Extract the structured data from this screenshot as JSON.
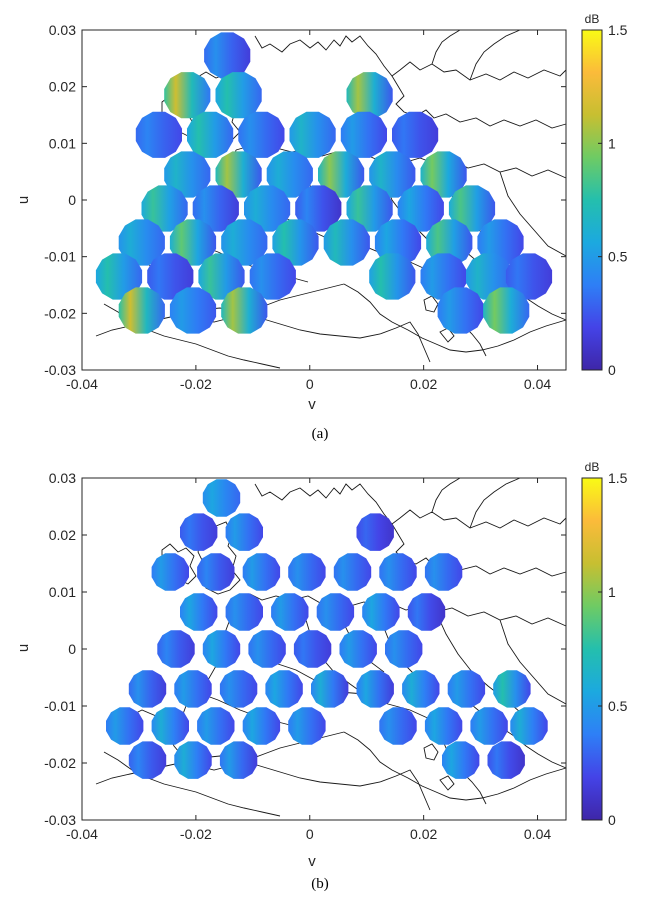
{
  "figure": {
    "panels": [
      {
        "caption": "(a)"
      },
      {
        "caption": "(b)"
      }
    ]
  },
  "colors": {
    "colormap": [
      "#3e26a8",
      "#4443e7",
      "#2e7ff6",
      "#1ca9df",
      "#24bfad",
      "#6ecb64",
      "#c7bf31",
      "#fbbb3a",
      "#f9fb15"
    ],
    "axis": "#262626",
    "coastline": "#1a1a1a"
  },
  "chart_data": [
    {
      "type": "heatmap",
      "title": "",
      "xlabel": "v",
      "ylabel": "u",
      "xlim": [
        -0.04,
        0.045
      ],
      "ylim": [
        -0.03,
        0.03
      ],
      "xticks": [
        "-0.04",
        "-0.02",
        "0",
        "0.02",
        "0.04"
      ],
      "xtick_values": [
        -0.04,
        -0.02,
        0,
        0.02,
        0.04
      ],
      "yticks": [
        "0.03",
        "0.02",
        "0.01",
        "0",
        "-0.01",
        "-0.02",
        "-0.03"
      ],
      "ytick_values": [
        0.03,
        0.02,
        0.01,
        0,
        -0.01,
        -0.02,
        -0.03
      ],
      "colorbar": {
        "label": "dB",
        "range": [
          0,
          1.5
        ],
        "ticks": [
          "1.5",
          "1",
          "0.5",
          "0"
        ],
        "tick_values": [
          1.5,
          1,
          0.5,
          0
        ]
      },
      "beam_radius": 0.0042,
      "beams": [
        {
          "v": -0.0145,
          "u": 0.0255,
          "min_db": 0.15,
          "max_db": 0.45
        },
        {
          "v": -0.0215,
          "u": 0.0185,
          "min_db": 0.35,
          "max_db": 1.15
        },
        {
          "v": -0.0125,
          "u": 0.0185,
          "min_db": 0.3,
          "max_db": 0.75
        },
        {
          "v": 0.0105,
          "u": 0.0185,
          "min_db": 0.25,
          "max_db": 1.05
        },
        {
          "v": -0.0265,
          "u": 0.0115,
          "min_db": 0.2,
          "max_db": 0.4
        },
        {
          "v": -0.0175,
          "u": 0.0115,
          "min_db": 0.3,
          "max_db": 0.75
        },
        {
          "v": -0.0085,
          "u": 0.0115,
          "min_db": 0.2,
          "max_db": 0.45
        },
        {
          "v": 0.0005,
          "u": 0.0115,
          "min_db": 0.3,
          "max_db": 0.65
        },
        {
          "v": 0.0095,
          "u": 0.0115,
          "min_db": 0.2,
          "max_db": 0.5
        },
        {
          "v": 0.0185,
          "u": 0.0115,
          "min_db": 0.15,
          "max_db": 0.35
        },
        {
          "v": -0.0215,
          "u": 0.0045,
          "min_db": 0.3,
          "max_db": 0.65
        },
        {
          "v": -0.0125,
          "u": 0.0045,
          "min_db": 0.25,
          "max_db": 1.05
        },
        {
          "v": -0.0035,
          "u": 0.0045,
          "min_db": 0.3,
          "max_db": 0.6
        },
        {
          "v": 0.0055,
          "u": 0.0045,
          "min_db": 0.25,
          "max_db": 1.0
        },
        {
          "v": 0.0145,
          "u": 0.0045,
          "min_db": 0.25,
          "max_db": 0.65
        },
        {
          "v": 0.0235,
          "u": 0.0045,
          "min_db": 0.25,
          "max_db": 0.95
        },
        {
          "v": -0.0255,
          "u": -0.0015,
          "min_db": 0.3,
          "max_db": 0.8
        },
        {
          "v": -0.0165,
          "u": -0.0015,
          "min_db": 0.15,
          "max_db": 0.45
        },
        {
          "v": -0.0075,
          "u": -0.0015,
          "min_db": 0.3,
          "max_db": 0.6
        },
        {
          "v": 0.0015,
          "u": -0.0015,
          "min_db": 0.1,
          "max_db": 0.4
        },
        {
          "v": 0.0105,
          "u": -0.0015,
          "min_db": 0.25,
          "max_db": 0.8
        },
        {
          "v": 0.0195,
          "u": -0.0015,
          "min_db": 0.2,
          "max_db": 0.55
        },
        {
          "v": 0.0285,
          "u": -0.0015,
          "min_db": 0.25,
          "max_db": 0.85
        },
        {
          "v": -0.0295,
          "u": -0.0075,
          "min_db": 0.3,
          "max_db": 0.6
        },
        {
          "v": -0.0205,
          "u": -0.0075,
          "min_db": 0.25,
          "max_db": 0.9
        },
        {
          "v": -0.0115,
          "u": -0.0075,
          "min_db": 0.3,
          "max_db": 0.6
        },
        {
          "v": -0.0025,
          "u": -0.0075,
          "min_db": 0.25,
          "max_db": 0.75
        },
        {
          "v": 0.0065,
          "u": -0.0075,
          "min_db": 0.25,
          "max_db": 0.7
        },
        {
          "v": 0.0155,
          "u": -0.0075,
          "min_db": 0.2,
          "max_db": 0.55
        },
        {
          "v": 0.0245,
          "u": -0.0075,
          "min_db": 0.25,
          "max_db": 0.85
        },
        {
          "v": 0.0335,
          "u": -0.0075,
          "min_db": 0.2,
          "max_db": 0.5
        },
        {
          "v": -0.0335,
          "u": -0.0135,
          "min_db": 0.3,
          "max_db": 0.75
        },
        {
          "v": -0.0245,
          "u": -0.0135,
          "min_db": 0.15,
          "max_db": 0.35
        },
        {
          "v": -0.0155,
          "u": -0.0135,
          "min_db": 0.25,
          "max_db": 0.8
        },
        {
          "v": -0.0065,
          "u": -0.0135,
          "min_db": 0.2,
          "max_db": 0.45
        },
        {
          "v": 0.0145,
          "u": -0.0135,
          "min_db": 0.25,
          "max_db": 0.75
        },
        {
          "v": 0.0235,
          "u": -0.0135,
          "min_db": 0.2,
          "max_db": 0.5
        },
        {
          "v": 0.0315,
          "u": -0.0135,
          "min_db": 0.3,
          "max_db": 0.65
        },
        {
          "v": 0.0385,
          "u": -0.0135,
          "min_db": 0.15,
          "max_db": 0.35
        },
        {
          "v": -0.0295,
          "u": -0.0195,
          "min_db": 0.3,
          "max_db": 1.15
        },
        {
          "v": -0.0205,
          "u": -0.0195,
          "min_db": 0.25,
          "max_db": 0.5
        },
        {
          "v": -0.0115,
          "u": -0.0195,
          "min_db": 0.25,
          "max_db": 1.05
        },
        {
          "v": 0.0265,
          "u": -0.0195,
          "min_db": 0.2,
          "max_db": 0.5
        },
        {
          "v": 0.0345,
          "u": -0.0195,
          "min_db": 0.3,
          "max_db": 0.95
        }
      ]
    },
    {
      "type": "heatmap",
      "title": "",
      "xlabel": "v",
      "ylabel": "u",
      "xlim": [
        -0.04,
        0.045
      ],
      "ylim": [
        -0.03,
        0.03
      ],
      "xticks": [
        "-0.04",
        "-0.02",
        "0",
        "0.02",
        "0.04"
      ],
      "xtick_values": [
        -0.04,
        -0.02,
        0,
        0.02,
        0.04
      ],
      "yticks": [
        "0.03",
        "0.02",
        "0.01",
        "0",
        "-0.01",
        "-0.02",
        "-0.03"
      ],
      "ytick_values": [
        0.03,
        0.02,
        0.01,
        0,
        -0.01,
        -0.02,
        -0.03
      ],
      "colorbar": {
        "label": "dB",
        "range": [
          0,
          1.5
        ],
        "ticks": [
          "1.5",
          "1",
          "0.5",
          "0"
        ],
        "tick_values": [
          1.5,
          1,
          0.5,
          0
        ]
      },
      "beam_radius": 0.0034,
      "beams": [
        {
          "v": -0.0155,
          "u": 0.0265,
          "min_db": 0.3,
          "max_db": 0.55
        },
        {
          "v": -0.0195,
          "u": 0.0205,
          "min_db": 0.15,
          "max_db": 0.35
        },
        {
          "v": -0.0115,
          "u": 0.0205,
          "min_db": 0.2,
          "max_db": 0.5
        },
        {
          "v": 0.0115,
          "u": 0.0205,
          "min_db": 0.1,
          "max_db": 0.3
        },
        {
          "v": -0.0245,
          "u": 0.0135,
          "min_db": 0.2,
          "max_db": 0.5
        },
        {
          "v": -0.0165,
          "u": 0.0135,
          "min_db": 0.15,
          "max_db": 0.4
        },
        {
          "v": -0.0085,
          "u": 0.0135,
          "min_db": 0.2,
          "max_db": 0.5
        },
        {
          "v": -0.0005,
          "u": 0.0135,
          "min_db": 0.2,
          "max_db": 0.45
        },
        {
          "v": 0.0075,
          "u": 0.0135,
          "min_db": 0.2,
          "max_db": 0.45
        },
        {
          "v": 0.0155,
          "u": 0.0135,
          "min_db": 0.2,
          "max_db": 0.45
        },
        {
          "v": 0.0235,
          "u": 0.0135,
          "min_db": 0.2,
          "max_db": 0.45
        },
        {
          "v": -0.0195,
          "u": 0.0065,
          "min_db": 0.2,
          "max_db": 0.55
        },
        {
          "v": -0.0115,
          "u": 0.0065,
          "min_db": 0.2,
          "max_db": 0.45
        },
        {
          "v": -0.0035,
          "u": 0.0065,
          "min_db": 0.2,
          "max_db": 0.5
        },
        {
          "v": 0.0045,
          "u": 0.0065,
          "min_db": 0.2,
          "max_db": 0.45
        },
        {
          "v": 0.0125,
          "u": 0.0065,
          "min_db": 0.2,
          "max_db": 0.55
        },
        {
          "v": 0.0205,
          "u": 0.0065,
          "min_db": 0.1,
          "max_db": 0.35
        },
        {
          "v": -0.0235,
          "u": 0.0,
          "min_db": 0.15,
          "max_db": 0.4
        },
        {
          "v": -0.0155,
          "u": 0.0,
          "min_db": 0.2,
          "max_db": 0.55
        },
        {
          "v": -0.0075,
          "u": 0.0,
          "min_db": 0.2,
          "max_db": 0.45
        },
        {
          "v": 0.0005,
          "u": 0.0,
          "min_db": 0.15,
          "max_db": 0.35
        },
        {
          "v": 0.0085,
          "u": 0.0,
          "min_db": 0.2,
          "max_db": 0.5
        },
        {
          "v": 0.0165,
          "u": 0.0,
          "min_db": 0.2,
          "max_db": 0.45
        },
        {
          "v": -0.0285,
          "u": -0.007,
          "min_db": 0.15,
          "max_db": 0.45
        },
        {
          "v": -0.0205,
          "u": -0.007,
          "min_db": 0.2,
          "max_db": 0.5
        },
        {
          "v": -0.0125,
          "u": -0.007,
          "min_db": 0.2,
          "max_db": 0.45
        },
        {
          "v": -0.0045,
          "u": -0.007,
          "min_db": 0.2,
          "max_db": 0.55
        },
        {
          "v": 0.0035,
          "u": -0.007,
          "min_db": 0.15,
          "max_db": 0.6
        },
        {
          "v": 0.0115,
          "u": -0.007,
          "min_db": 0.15,
          "max_db": 0.55
        },
        {
          "v": 0.0195,
          "u": -0.007,
          "min_db": 0.2,
          "max_db": 0.6
        },
        {
          "v": 0.0275,
          "u": -0.007,
          "min_db": 0.2,
          "max_db": 0.5
        },
        {
          "v": 0.0355,
          "u": -0.007,
          "min_db": 0.2,
          "max_db": 0.75
        },
        {
          "v": -0.0325,
          "u": -0.0135,
          "min_db": 0.2,
          "max_db": 0.5
        },
        {
          "v": -0.0245,
          "u": -0.0135,
          "min_db": 0.2,
          "max_db": 0.6
        },
        {
          "v": -0.0165,
          "u": -0.0135,
          "min_db": 0.2,
          "max_db": 0.5
        },
        {
          "v": -0.0085,
          "u": -0.0135,
          "min_db": 0.2,
          "max_db": 0.55
        },
        {
          "v": -0.0005,
          "u": -0.0135,
          "min_db": 0.2,
          "max_db": 0.5
        },
        {
          "v": 0.0155,
          "u": -0.0135,
          "min_db": 0.2,
          "max_db": 0.45
        },
        {
          "v": 0.0235,
          "u": -0.0135,
          "min_db": 0.2,
          "max_db": 0.55
        },
        {
          "v": 0.0315,
          "u": -0.0135,
          "min_db": 0.2,
          "max_db": 0.5
        },
        {
          "v": 0.0385,
          "u": -0.0135,
          "min_db": 0.2,
          "max_db": 0.6
        },
        {
          "v": -0.0285,
          "u": -0.0195,
          "min_db": 0.15,
          "max_db": 0.4
        },
        {
          "v": -0.0205,
          "u": -0.0195,
          "min_db": 0.2,
          "max_db": 0.6
        },
        {
          "v": -0.0125,
          "u": -0.0195,
          "min_db": 0.15,
          "max_db": 0.5
        },
        {
          "v": 0.0265,
          "u": -0.0195,
          "min_db": 0.2,
          "max_db": 0.55
        },
        {
          "v": 0.0345,
          "u": -0.0195,
          "min_db": 0.1,
          "max_db": 0.35
        }
      ]
    }
  ]
}
